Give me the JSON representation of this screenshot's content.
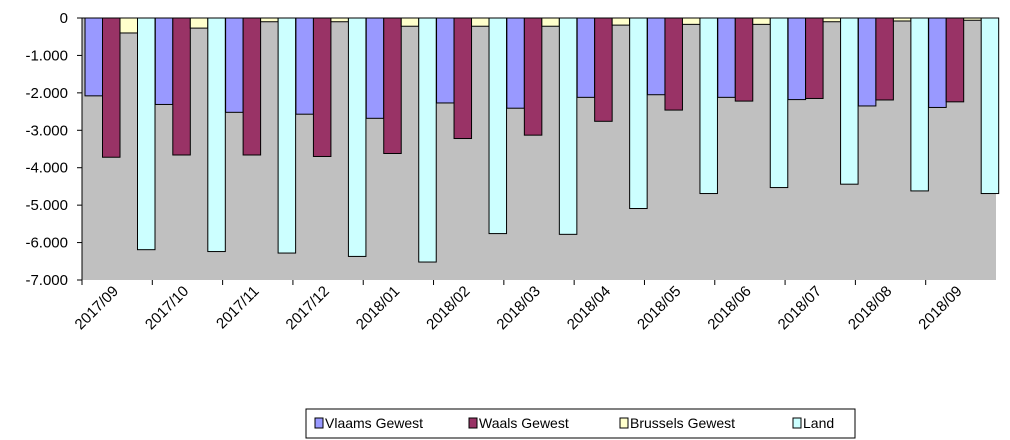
{
  "chart_data": {
    "type": "bar",
    "categories": [
      "2017/09",
      "2017/10",
      "2017/11",
      "2017/12",
      "2018/01",
      "2018/02",
      "2018/03",
      "2018/04",
      "2018/05",
      "2018/06",
      "2018/07",
      "2018/08",
      "2018/09"
    ],
    "series": [
      {
        "name": "Vlaams Gewest",
        "color": "#9999ff",
        "values": [
          -2080,
          -2310,
          -2520,
          -2570,
          -2680,
          -2270,
          -2410,
          -2120,
          -2050,
          -2120,
          -2180,
          -2350,
          -2390
        ]
      },
      {
        "name": "Waals Gewest",
        "color": "#993366",
        "values": [
          -3720,
          -3660,
          -3660,
          -3700,
          -3620,
          -3220,
          -3130,
          -2760,
          -2460,
          -2220,
          -2150,
          -2190,
          -2240
        ]
      },
      {
        "name": "Brussels Gewest",
        "color": "#ffffcc",
        "values": [
          -400,
          -270,
          -100,
          -100,
          -220,
          -220,
          -220,
          -190,
          -170,
          -170,
          -100,
          -80,
          -60
        ]
      },
      {
        "name": "Land",
        "color": "#ccffff",
        "values": [
          -6190,
          -6240,
          -6280,
          -6370,
          -6520,
          -5760,
          -5780,
          -5090,
          -4690,
          -4530,
          -4440,
          -4620,
          -4690
        ]
      }
    ],
    "y_ticks": [
      "0",
      "-1.000",
      "-2.000",
      "-3.000",
      "-4.000",
      "-5.000",
      "-6.000",
      "-7.000"
    ],
    "ylim": [
      -7000,
      0
    ],
    "plot_background": "#c0c0c0",
    "grid": false,
    "legend_position": "bottom"
  }
}
